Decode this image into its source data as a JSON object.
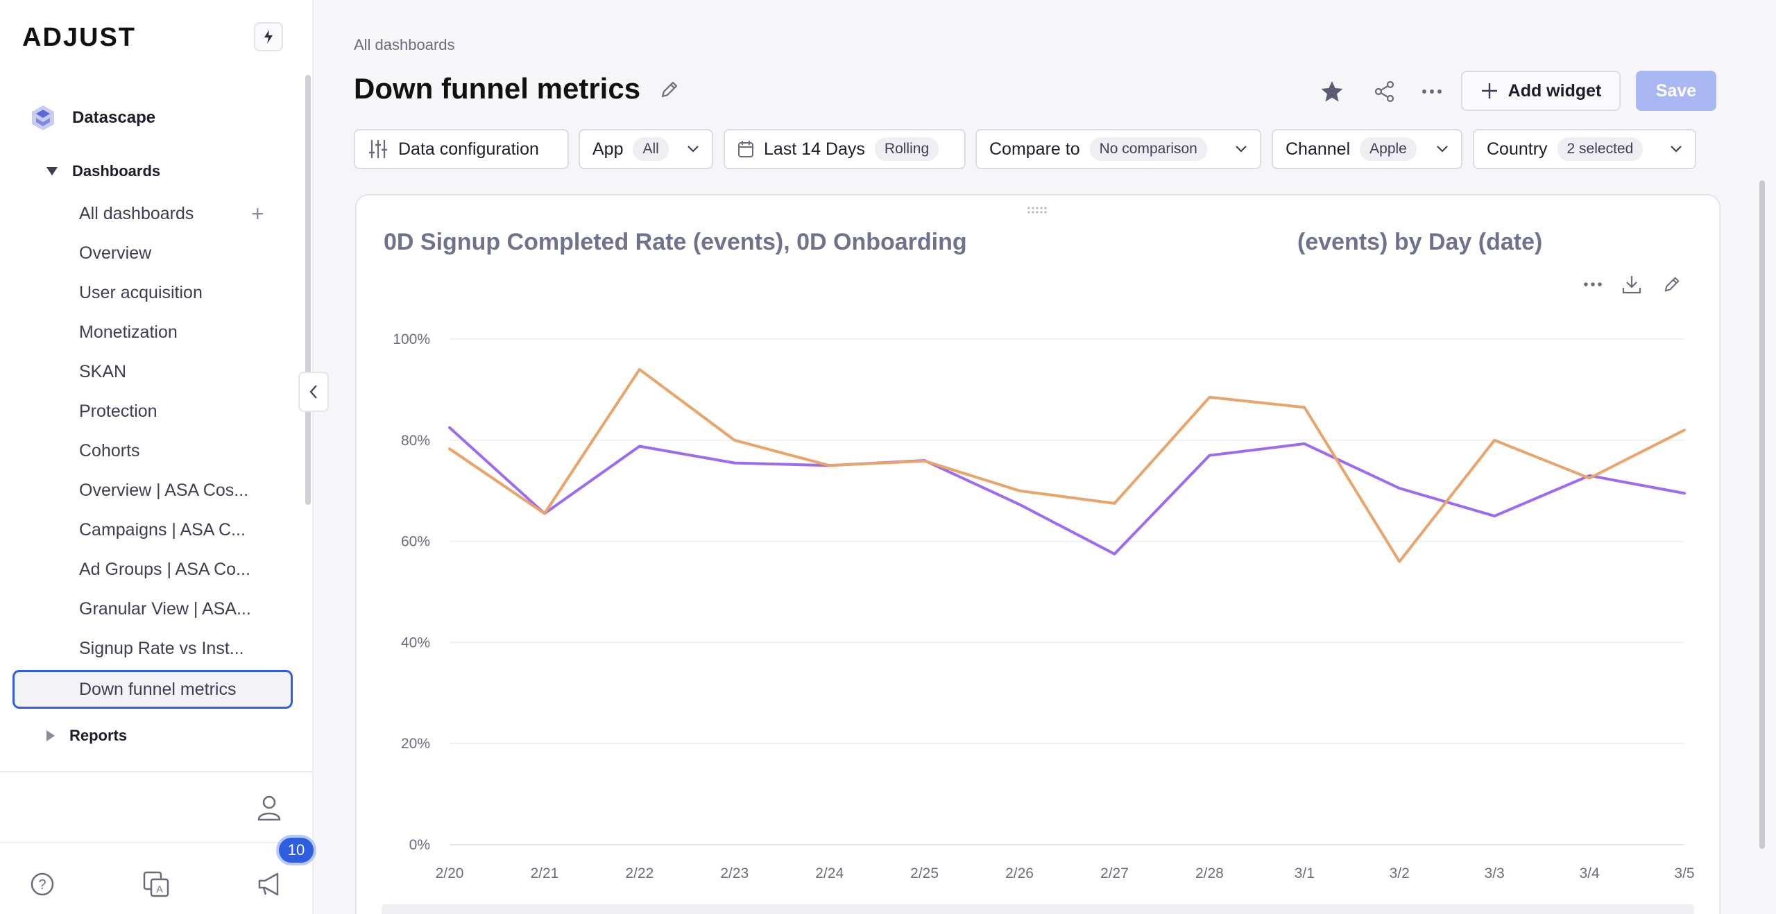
{
  "sidebar": {
    "logo": "ADJUST",
    "product": "Datascape",
    "dashboards_label": "Dashboards",
    "items": [
      {
        "label": "All dashboards"
      },
      {
        "label": "Overview"
      },
      {
        "label": "User acquisition"
      },
      {
        "label": "Monetization"
      },
      {
        "label": "SKAN"
      },
      {
        "label": "Protection"
      },
      {
        "label": "Cohorts"
      },
      {
        "label": "Overview | ASA Cos..."
      },
      {
        "label": "Campaigns | ASA C..."
      },
      {
        "label": "Ad Groups | ASA Co..."
      },
      {
        "label": "Granular View | ASA..."
      },
      {
        "label": "Signup Rate vs Inst..."
      },
      {
        "label": "Down funnel metrics",
        "active": true
      }
    ],
    "reports_label": "Reports",
    "notification_count": "10"
  },
  "header": {
    "breadcrumb": "All dashboards",
    "title": "Down funnel metrics",
    "add_widget_label": "Add widget",
    "save_label": "Save"
  },
  "filters": {
    "data_config": "Data configuration",
    "app_label": "App",
    "app_value": "All",
    "date_label": "Last 14 Days",
    "date_value": "Rolling",
    "compare_label": "Compare to",
    "compare_value": "No comparison",
    "channel_label": "Channel",
    "channel_value": "Apple",
    "country_label": "Country",
    "country_value": "2 selected"
  },
  "widget": {
    "title": "0D Signup Completed Rate (events), 0D Onboarding ",
    "title_tail": "(events) by Day (date)"
  },
  "colors": {
    "accent": "#2f5de0",
    "series_purple": "#9b6cf0",
    "series_orange": "#e9a46a"
  },
  "chart_data": {
    "type": "line",
    "categories": [
      "2/20",
      "2/21",
      "2/22",
      "2/23",
      "2/24",
      "2/25",
      "2/26",
      "2/27",
      "2/28",
      "3/1",
      "3/2",
      "3/3",
      "3/4",
      "3/5"
    ],
    "y_ticks": [
      "100%",
      "80%",
      "60%",
      "40%",
      "20%",
      "0%"
    ],
    "ylim": [
      0,
      100
    ],
    "grid": true,
    "series": [
      {
        "color": "#9b6cf0",
        "values": [
          82.5,
          65.5,
          78.8,
          75.5,
          75,
          76,
          67.3,
          57.5,
          77,
          79.3,
          70.5,
          65,
          73,
          69.5
        ]
      },
      {
        "color": "#e9a46a",
        "values": [
          78.3,
          65.5,
          94,
          80,
          75,
          75.9,
          70,
          67.5,
          88.5,
          86.5,
          56,
          80,
          72.5,
          82
        ]
      }
    ]
  }
}
